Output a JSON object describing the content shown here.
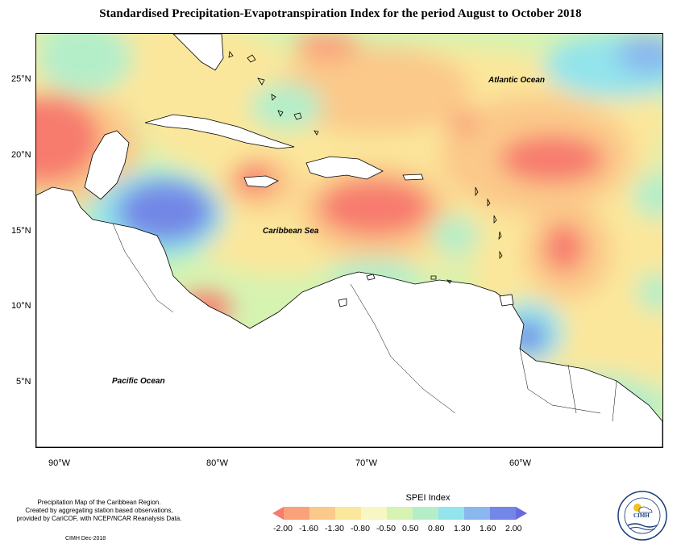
{
  "title": "Standardised Precipitation-Evapotranspiration Index for the period August to October 2018",
  "map": {
    "lat_labels": [
      "25°N",
      "20°N",
      "15°N",
      "10°N",
      "5°N"
    ],
    "lon_labels": [
      "90°W",
      "80°W",
      "70°W",
      "60°W"
    ],
    "ocean_labels": [
      "Atlantic Ocean",
      "Caribbean Sea",
      "Pacific Ocean"
    ]
  },
  "credits": {
    "line1": "Precipitation Map of the Caribbean Region.",
    "line2": "Created by aggregating station based observations,",
    "line3": "provided by CariCOF, with NCEP/NCAR Reanalysis Data.",
    "footer": "CIMH Dec-2018"
  },
  "legend": {
    "title": "SPEI Index",
    "ticks": [
      "-2.00",
      "-1.60",
      "-1.30",
      "-0.80",
      "-0.50",
      "0.50",
      "0.80",
      "1.30",
      "1.60",
      "2.00"
    ],
    "colors": [
      "#f77b6e",
      "#f9a27a",
      "#fbc98a",
      "#fbe79b",
      "#f7f7c3",
      "#d6f3b1",
      "#b4eec9",
      "#93e4ec",
      "#8ab8ee",
      "#7387e6",
      "#6a6ae0"
    ]
  },
  "logo": {
    "text": "CIMH",
    "icon": "cimh-logo-icon"
  }
}
